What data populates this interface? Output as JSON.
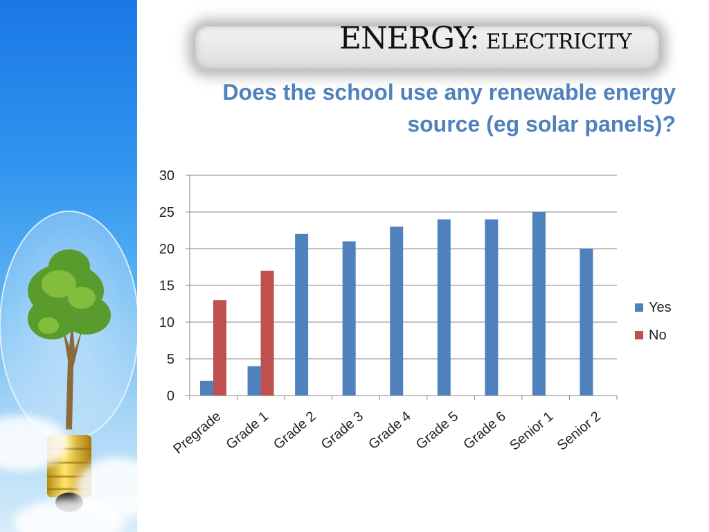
{
  "title": {
    "main": "ENERGY:",
    "sub": "ELECTRICITY"
  },
  "subtitle_lines": [
    "Does the school use any renewable energy",
    "source (eg solar panels)?"
  ],
  "colors": {
    "yes": "#4f81bd",
    "no": "#c0504d",
    "subtitle": "#4f81bd",
    "grid": "#868686"
  },
  "chart_data": {
    "type": "bar",
    "categories": [
      "Pregrade",
      "Grade 1",
      "Grade 2",
      "Grade 3",
      "Grade 4",
      "Grade 5",
      "Grade 6",
      "Senior 1",
      "Senior 2"
    ],
    "series": [
      {
        "name": "Yes",
        "values": [
          2,
          4,
          22,
          21,
          23,
          24,
          24,
          25,
          20
        ]
      },
      {
        "name": "No",
        "values": [
          13,
          17,
          null,
          null,
          null,
          null,
          null,
          null,
          null
        ]
      }
    ],
    "ylim": [
      0,
      30
    ],
    "yticks": [
      0,
      5,
      10,
      15,
      20,
      25,
      30
    ],
    "grid": true,
    "legend": "right"
  }
}
